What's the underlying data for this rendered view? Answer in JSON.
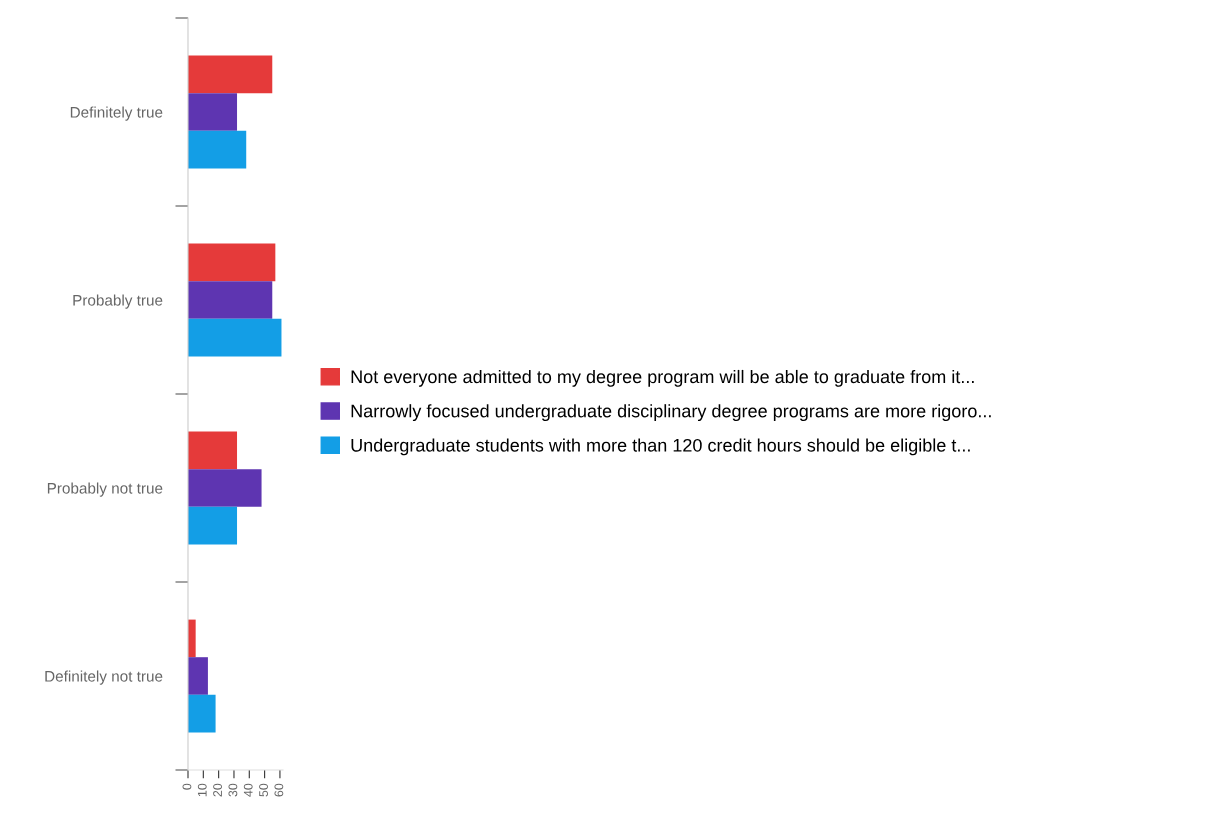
{
  "chart_data": {
    "type": "bar",
    "orientation": "horizontal",
    "categories": [
      "Definitely true",
      "Probably true",
      "Probably not true",
      "Definitely not true"
    ],
    "series": [
      {
        "name": "Not everyone admitted to my degree program will be able to graduate from it...",
        "color": "#e53a3a",
        "values": [
          55,
          57,
          32,
          5
        ]
      },
      {
        "name": "Narrowly focused undergraduate disciplinary degree programs are more rigoro...",
        "color": "#5e35b1",
        "values": [
          32,
          55,
          48,
          13
        ]
      },
      {
        "name": "Undergraduate students with more than 120 credit hours should be eligible t...",
        "color": "#139ee6",
        "values": [
          38,
          61,
          32,
          18
        ]
      }
    ],
    "xlim": [
      0,
      62
    ],
    "xticks": [
      0,
      10,
      20,
      30,
      40,
      50,
      60
    ],
    "grid": false,
    "legend": "right"
  }
}
